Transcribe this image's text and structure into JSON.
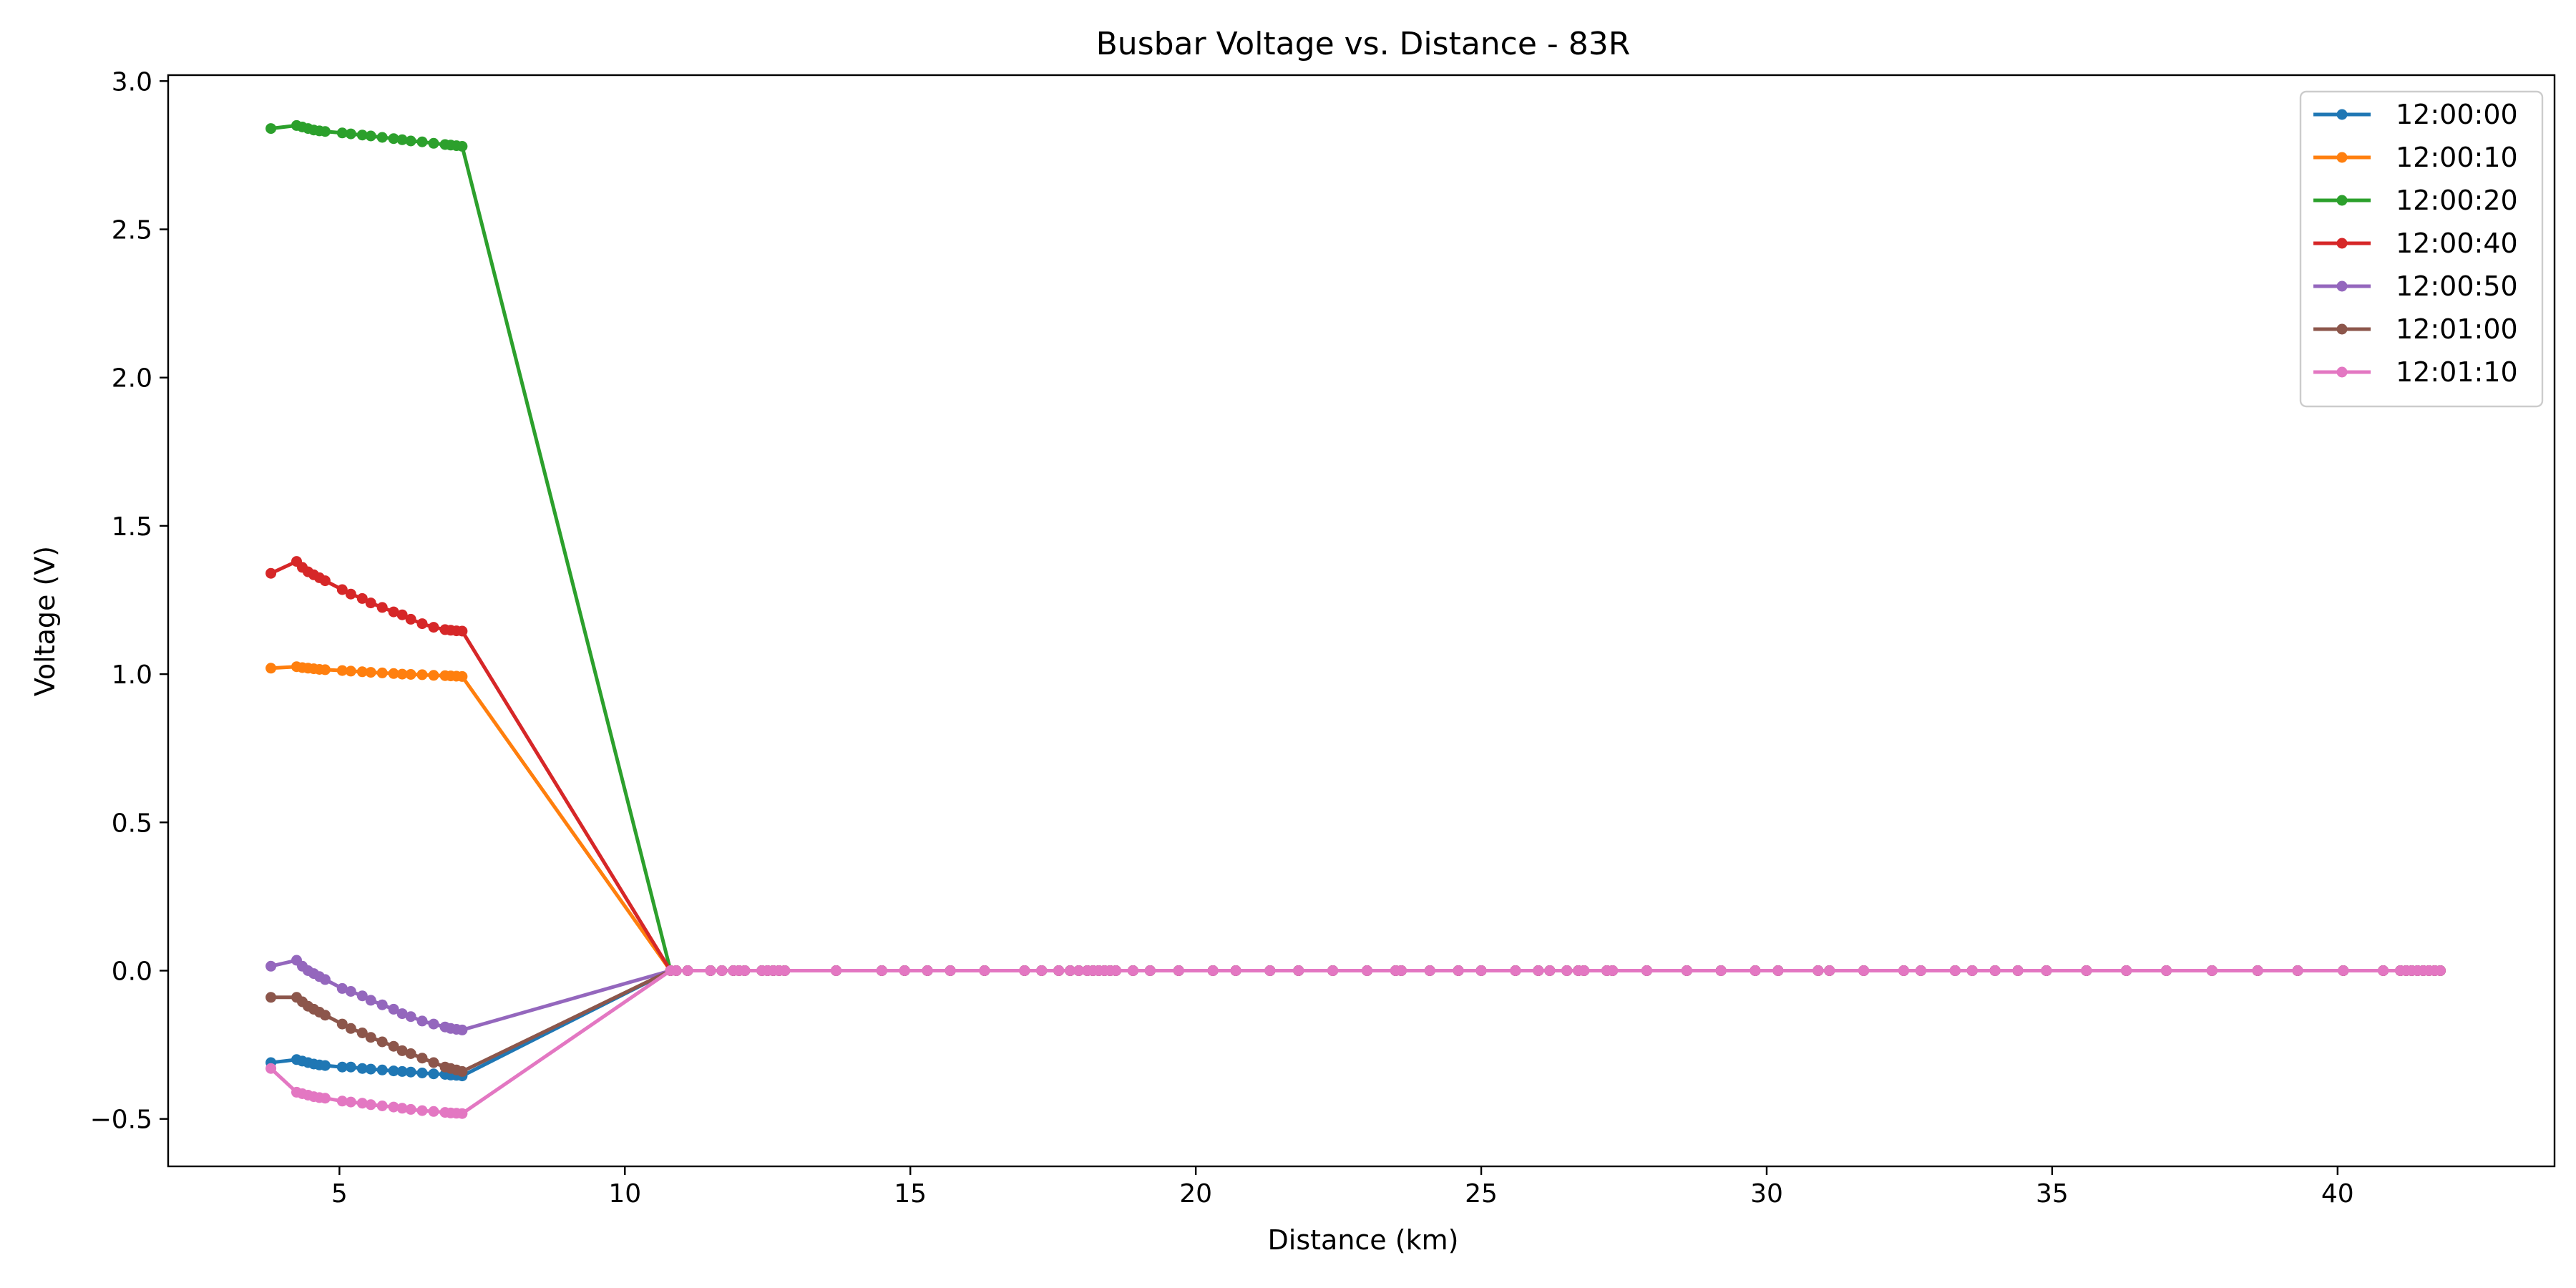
{
  "chart_data": {
    "type": "line",
    "title": "Busbar Voltage vs. Distance - 83R",
    "xlabel": "Distance (km)",
    "ylabel": "Voltage (V)",
    "xlim": [
      2.0,
      43.8
    ],
    "ylim": [
      -0.66,
      3.02
    ],
    "x_ticks": [
      5,
      10,
      15,
      20,
      25,
      30,
      35,
      40
    ],
    "y_ticks": [
      -0.5,
      0.0,
      0.5,
      1.0,
      1.5,
      2.0,
      2.5,
      3.0
    ],
    "x_tick_labels": [
      "5",
      "10",
      "15",
      "20",
      "25",
      "30",
      "35",
      "40"
    ],
    "y_tick_labels": [
      "−0.5",
      "0.0",
      "0.5",
      "1.0",
      "1.5",
      "2.0",
      "2.5",
      "3.0"
    ],
    "grid": false,
    "legend_position": "top-right",
    "x": [
      3.8,
      4.25,
      4.35,
      4.45,
      4.55,
      4.65,
      4.75,
      5.05,
      5.2,
      5.4,
      5.55,
      5.75,
      5.95,
      6.1,
      6.25,
      6.45,
      6.65,
      6.85,
      6.95,
      7.05,
      7.15,
      10.8,
      10.9,
      11.1,
      11.5,
      11.7,
      11.9,
      12.0,
      12.1,
      12.4,
      12.5,
      12.6,
      12.7,
      12.8,
      13.7,
      14.5,
      14.9,
      15.3,
      15.7,
      16.3,
      17.0,
      17.3,
      17.6,
      17.8,
      17.95,
      18.1,
      18.2,
      18.3,
      18.4,
      18.5,
      18.6,
      18.9,
      19.2,
      19.7,
      20.3,
      20.7,
      21.3,
      21.8,
      22.4,
      23.0,
      23.5,
      23.6,
      24.1,
      24.6,
      25.0,
      25.6,
      26.0,
      26.2,
      26.5,
      26.7,
      26.8,
      27.2,
      27.3,
      27.9,
      28.6,
      29.2,
      29.8,
      30.2,
      30.9,
      31.1,
      31.7,
      32.4,
      32.7,
      33.3,
      33.6,
      34.0,
      34.4,
      34.9,
      35.6,
      36.3,
      37.0,
      37.8,
      38.6,
      39.3,
      40.1,
      40.8,
      41.1,
      41.2,
      41.3,
      41.4,
      41.5,
      41.6,
      41.7,
      41.8
    ],
    "series": [
      {
        "name": "12:00:00",
        "color": "#1f77b4",
        "values": [
          -0.31,
          -0.3,
          -0.305,
          -0.31,
          -0.315,
          -0.318,
          -0.32,
          -0.325,
          -0.325,
          -0.33,
          -0.332,
          -0.335,
          -0.338,
          -0.34,
          -0.342,
          -0.345,
          -0.348,
          -0.35,
          -0.352,
          -0.353,
          -0.355,
          0.0,
          0,
          0,
          0,
          0,
          0,
          0,
          0,
          0,
          0,
          0,
          0,
          0,
          0,
          0,
          0,
          0,
          0,
          0,
          0,
          0,
          0,
          0,
          0,
          0,
          0,
          0,
          0,
          0,
          0,
          0,
          0,
          0,
          0,
          0,
          0,
          0,
          0,
          0,
          0,
          0,
          0,
          0,
          0,
          0,
          0,
          0,
          0,
          0,
          0,
          0,
          0,
          0,
          0,
          0,
          0,
          0,
          0,
          0,
          0,
          0,
          0,
          0,
          0,
          0,
          0,
          0,
          0,
          0,
          0,
          0,
          0,
          0,
          0,
          0,
          0,
          0,
          0,
          0,
          0,
          0,
          0,
          0
        ]
      },
      {
        "name": "12:00:10",
        "color": "#ff7f0e",
        "values": [
          1.02,
          1.025,
          1.022,
          1.02,
          1.018,
          1.016,
          1.015,
          1.012,
          1.01,
          1.008,
          1.006,
          1.004,
          1.002,
          1.0,
          0.999,
          0.998,
          0.996,
          0.995,
          0.994,
          0.993,
          0.992,
          0.0,
          0,
          0,
          0,
          0,
          0,
          0,
          0,
          0,
          0,
          0,
          0,
          0,
          0,
          0,
          0,
          0,
          0,
          0,
          0,
          0,
          0,
          0,
          0,
          0,
          0,
          0,
          0,
          0,
          0,
          0,
          0,
          0,
          0,
          0,
          0,
          0,
          0,
          0,
          0,
          0,
          0,
          0,
          0,
          0,
          0,
          0,
          0,
          0,
          0,
          0,
          0,
          0,
          0,
          0,
          0,
          0,
          0,
          0,
          0,
          0,
          0,
          0,
          0,
          0,
          0,
          0,
          0,
          0,
          0,
          0,
          0,
          0,
          0,
          0,
          0,
          0,
          0,
          0,
          0,
          0,
          0,
          0
        ]
      },
      {
        "name": "12:00:20",
        "color": "#2ca02c",
        "values": [
          2.84,
          2.85,
          2.845,
          2.84,
          2.835,
          2.832,
          2.83,
          2.825,
          2.822,
          2.818,
          2.815,
          2.81,
          2.806,
          2.802,
          2.798,
          2.795,
          2.79,
          2.786,
          2.784,
          2.782,
          2.78,
          0.0,
          0,
          0,
          0,
          0,
          0,
          0,
          0,
          0,
          0,
          0,
          0,
          0,
          0,
          0,
          0,
          0,
          0,
          0,
          0,
          0,
          0,
          0,
          0,
          0,
          0,
          0,
          0,
          0,
          0,
          0,
          0,
          0,
          0,
          0,
          0,
          0,
          0,
          0,
          0,
          0,
          0,
          0,
          0,
          0,
          0,
          0,
          0,
          0,
          0,
          0,
          0,
          0,
          0,
          0,
          0,
          0,
          0,
          0,
          0,
          0,
          0,
          0,
          0,
          0,
          0,
          0,
          0,
          0,
          0,
          0,
          0,
          0,
          0,
          0,
          0,
          0,
          0,
          0,
          0,
          0,
          0,
          0
        ]
      },
      {
        "name": "12:00:40",
        "color": "#d62728",
        "values": [
          1.34,
          1.38,
          1.36,
          1.345,
          1.335,
          1.325,
          1.315,
          1.285,
          1.27,
          1.255,
          1.24,
          1.225,
          1.21,
          1.2,
          1.185,
          1.17,
          1.158,
          1.15,
          1.148,
          1.146,
          1.145,
          0.0,
          0,
          0,
          0,
          0,
          0,
          0,
          0,
          0,
          0,
          0,
          0,
          0,
          0,
          0,
          0,
          0,
          0,
          0,
          0,
          0,
          0,
          0,
          0,
          0,
          0,
          0,
          0,
          0,
          0,
          0,
          0,
          0,
          0,
          0,
          0,
          0,
          0,
          0,
          0,
          0,
          0,
          0,
          0,
          0,
          0,
          0,
          0,
          0,
          0,
          0,
          0,
          0,
          0,
          0,
          0,
          0,
          0,
          0,
          0,
          0,
          0,
          0,
          0,
          0,
          0,
          0,
          0,
          0,
          0,
          0,
          0,
          0,
          0,
          0,
          0,
          0,
          0,
          0,
          0,
          0,
          0,
          0
        ]
      },
      {
        "name": "12:00:50",
        "color": "#9467bd",
        "values": [
          0.015,
          0.035,
          0.015,
          0.0,
          -0.01,
          -0.02,
          -0.03,
          -0.06,
          -0.07,
          -0.085,
          -0.1,
          -0.115,
          -0.13,
          -0.145,
          -0.155,
          -0.17,
          -0.18,
          -0.19,
          -0.195,
          -0.198,
          -0.2,
          0.0,
          0,
          0,
          0,
          0,
          0,
          0,
          0,
          0,
          0,
          0,
          0,
          0,
          0,
          0,
          0,
          0,
          0,
          0,
          0,
          0,
          0,
          0,
          0,
          0,
          0,
          0,
          0,
          0,
          0,
          0,
          0,
          0,
          0,
          0,
          0,
          0,
          0,
          0,
          0,
          0,
          0,
          0,
          0,
          0,
          0,
          0,
          0,
          0,
          0,
          0,
          0,
          0,
          0,
          0,
          0,
          0,
          0,
          0,
          0,
          0,
          0,
          0,
          0,
          0,
          0,
          0,
          0,
          0,
          0,
          0,
          0,
          0,
          0,
          0,
          0,
          0,
          0,
          0,
          0,
          0,
          0,
          0
        ]
      },
      {
        "name": "12:01:00",
        "color": "#8c564b",
        "values": [
          -0.09,
          -0.09,
          -0.105,
          -0.12,
          -0.13,
          -0.14,
          -0.15,
          -0.18,
          -0.195,
          -0.21,
          -0.225,
          -0.24,
          -0.255,
          -0.27,
          -0.28,
          -0.295,
          -0.31,
          -0.325,
          -0.33,
          -0.335,
          -0.34,
          0.0,
          0,
          0,
          0,
          0,
          0,
          0,
          0,
          0,
          0,
          0,
          0,
          0,
          0,
          0,
          0,
          0,
          0,
          0,
          0,
          0,
          0,
          0,
          0,
          0,
          0,
          0,
          0,
          0,
          0,
          0,
          0,
          0,
          0,
          0,
          0,
          0,
          0,
          0,
          0,
          0,
          0,
          0,
          0,
          0,
          0,
          0,
          0,
          0,
          0,
          0,
          0,
          0,
          0,
          0,
          0,
          0,
          0,
          0,
          0,
          0,
          0,
          0,
          0,
          0,
          0,
          0,
          0,
          0,
          0,
          0,
          0,
          0,
          0,
          0,
          0,
          0,
          0,
          0,
          0,
          0,
          0,
          0
        ]
      },
      {
        "name": "12:01:10",
        "color": "#e377c2",
        "values": [
          -0.33,
          -0.41,
          -0.415,
          -0.42,
          -0.425,
          -0.428,
          -0.43,
          -0.44,
          -0.443,
          -0.447,
          -0.452,
          -0.456,
          -0.46,
          -0.464,
          -0.468,
          -0.472,
          -0.475,
          -0.478,
          -0.48,
          -0.481,
          -0.482,
          0.0,
          0,
          0,
          0,
          0,
          0,
          0,
          0,
          0,
          0,
          0,
          0,
          0,
          0,
          0,
          0,
          0,
          0,
          0,
          0,
          0,
          0,
          0,
          0,
          0,
          0,
          0,
          0,
          0,
          0,
          0,
          0,
          0,
          0,
          0,
          0,
          0,
          0,
          0,
          0,
          0,
          0,
          0,
          0,
          0,
          0,
          0,
          0,
          0,
          0,
          0,
          0,
          0,
          0,
          0,
          0,
          0,
          0,
          0,
          0,
          0,
          0,
          0,
          0,
          0,
          0,
          0,
          0,
          0,
          0,
          0,
          0,
          0,
          0,
          0,
          0,
          0,
          0,
          0,
          0,
          0,
          0,
          0
        ]
      }
    ]
  }
}
